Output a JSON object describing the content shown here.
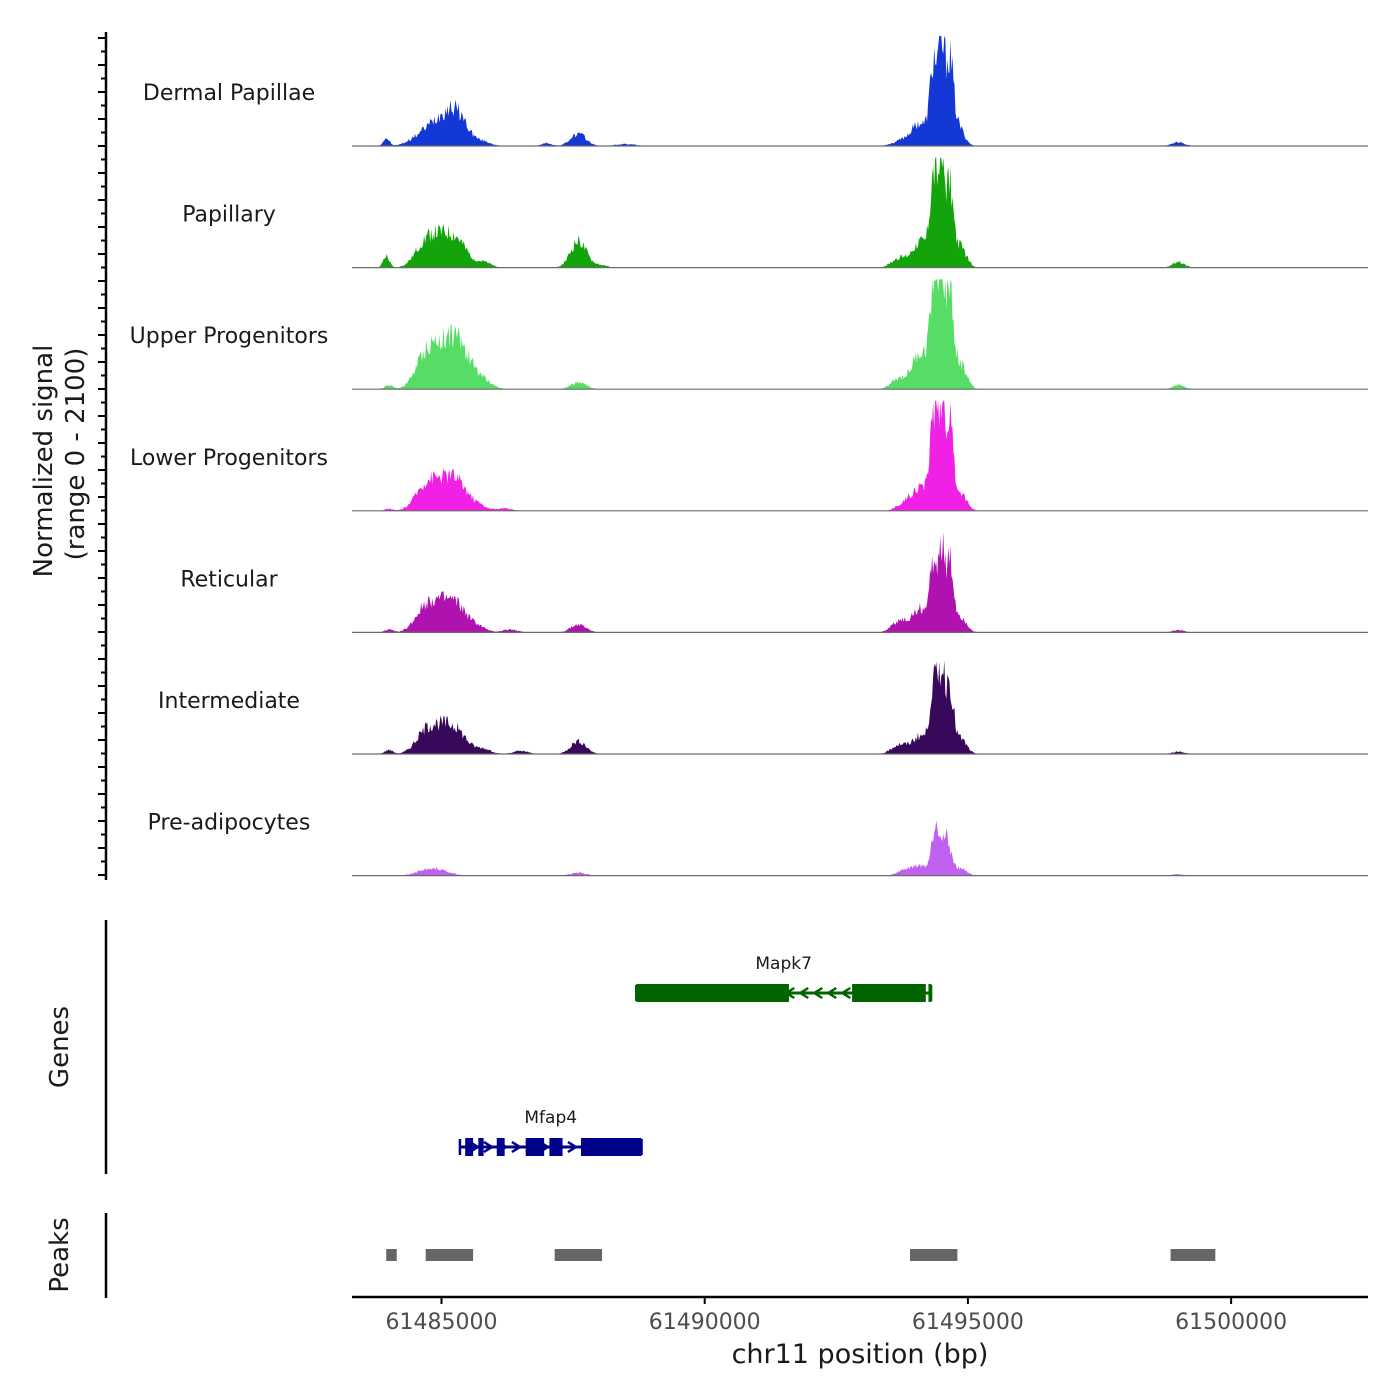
{
  "chart_data": {
    "type": "area",
    "title": "",
    "ylabel_line1": "Normalized signal",
    "ylabel_line2": "(range 0 - 2100)",
    "signal_range": [
      0,
      2100
    ],
    "xlabel": "chr11 position (bp)",
    "xlim": [
      61483300,
      61502600
    ],
    "x_ticks": [
      61485000,
      61490000,
      61495000,
      61500000
    ],
    "x_tick_labels": [
      "61485000",
      "61490000",
      "61495000",
      "61500000"
    ],
    "track_labels": {
      "genes": "Genes",
      "peaks": "Peaks"
    },
    "series": [
      {
        "name": "Dermal Papillae",
        "color": "#1338d6",
        "peaks": [
          [
            61483950,
            150,
            60
          ],
          [
            61484700,
            250,
            250
          ],
          [
            61485000,
            320,
            200
          ],
          [
            61485300,
            580,
            200
          ],
          [
            61485800,
            80,
            150
          ],
          [
            61487000,
            60,
            100
          ],
          [
            61487600,
            230,
            150
          ],
          [
            61488500,
            40,
            200
          ],
          [
            61493800,
            120,
            200
          ],
          [
            61494100,
            400,
            150
          ],
          [
            61494350,
            1500,
            70
          ],
          [
            61494500,
            1650,
            60
          ],
          [
            61494650,
            1500,
            70
          ],
          [
            61494800,
            400,
            120
          ],
          [
            61499000,
            80,
            120
          ]
        ]
      },
      {
        "name": "Papillary",
        "color": "#13a30a",
        "peaks": [
          [
            61483950,
            220,
            60
          ],
          [
            61484700,
            450,
            200
          ],
          [
            61485000,
            380,
            200
          ],
          [
            61485300,
            450,
            200
          ],
          [
            61485800,
            100,
            150
          ],
          [
            61487600,
            500,
            150
          ],
          [
            61488000,
            50,
            150
          ],
          [
            61493700,
            180,
            150
          ],
          [
            61494100,
            500,
            150
          ],
          [
            61494350,
            1650,
            70
          ],
          [
            61494500,
            1750,
            60
          ],
          [
            61494650,
            1500,
            70
          ],
          [
            61494850,
            400,
            120
          ],
          [
            61499000,
            100,
            120
          ]
        ]
      },
      {
        "name": "Upper Progenitors",
        "color": "#55dd66",
        "peaks": [
          [
            61484000,
            80,
            80
          ],
          [
            61484700,
            600,
            200
          ],
          [
            61485000,
            500,
            200
          ],
          [
            61485300,
            800,
            200
          ],
          [
            61485700,
            250,
            200
          ],
          [
            61487600,
            130,
            150
          ],
          [
            61493700,
            200,
            150
          ],
          [
            61494100,
            700,
            150
          ],
          [
            61494350,
            2000,
            70
          ],
          [
            61494500,
            2100,
            60
          ],
          [
            61494650,
            1800,
            70
          ],
          [
            61494850,
            500,
            120
          ],
          [
            61499000,
            80,
            120
          ]
        ]
      },
      {
        "name": "Lower Progenitors",
        "color": "#f020e6",
        "peaks": [
          [
            61484000,
            40,
            80
          ],
          [
            61484700,
            450,
            200
          ],
          [
            61485000,
            350,
            200
          ],
          [
            61485300,
            500,
            200
          ],
          [
            61485700,
            100,
            150
          ],
          [
            61486200,
            50,
            150
          ],
          [
            61493800,
            150,
            150
          ],
          [
            61494100,
            450,
            150
          ],
          [
            61494350,
            1800,
            70
          ],
          [
            61494500,
            1900,
            60
          ],
          [
            61494650,
            1650,
            70
          ],
          [
            61494850,
            350,
            120
          ]
        ]
      },
      {
        "name": "Reticular",
        "color": "#b012b0",
        "peaks": [
          [
            61484000,
            60,
            80
          ],
          [
            61484700,
            450,
            200
          ],
          [
            61485000,
            350,
            200
          ],
          [
            61485300,
            450,
            200
          ],
          [
            61485700,
            100,
            150
          ],
          [
            61486300,
            60,
            150
          ],
          [
            61487600,
            150,
            150
          ],
          [
            61493700,
            220,
            150
          ],
          [
            61494100,
            450,
            150
          ],
          [
            61494350,
            1250,
            70
          ],
          [
            61494500,
            1400,
            60
          ],
          [
            61494650,
            1250,
            70
          ],
          [
            61494850,
            300,
            120
          ],
          [
            61499000,
            50,
            120
          ]
        ]
      },
      {
        "name": "Intermediate",
        "color": "#38095a",
        "peaks": [
          [
            61484000,
            80,
            80
          ],
          [
            61484700,
            380,
            200
          ],
          [
            61485000,
            350,
            200
          ],
          [
            61485300,
            380,
            200
          ],
          [
            61485800,
            100,
            150
          ],
          [
            61486500,
            60,
            150
          ],
          [
            61487600,
            250,
            150
          ],
          [
            61493700,
            180,
            150
          ],
          [
            61494100,
            350,
            150
          ],
          [
            61494350,
            1300,
            70
          ],
          [
            61494500,
            1450,
            60
          ],
          [
            61494650,
            1300,
            70
          ],
          [
            61494850,
            300,
            120
          ],
          [
            61499000,
            50,
            120
          ]
        ]
      },
      {
        "name": "Pre-adipocytes",
        "color": "#c060f0",
        "peaks": [
          [
            61484700,
            100,
            200
          ],
          [
            61485000,
            80,
            200
          ],
          [
            61487600,
            60,
            150
          ],
          [
            61493800,
            100,
            150
          ],
          [
            61494100,
            180,
            150
          ],
          [
            61494400,
            1000,
            80
          ],
          [
            61494600,
            650,
            80
          ],
          [
            61494850,
            150,
            120
          ],
          [
            61499000,
            30,
            120
          ]
        ]
      }
    ],
    "genes": [
      {
        "name": "Mapk7",
        "color": "#006400",
        "strand": "-",
        "row": 0,
        "start": 61488700,
        "end": 61494300,
        "exons": [
          [
            61488700,
            61491600
          ],
          [
            61492800,
            61494200
          ],
          [
            61494250,
            61494300
          ]
        ]
      },
      {
        "name": "Mfap4",
        "color": "#00008b",
        "strand": "+",
        "row": 1,
        "start": 61485350,
        "end": 61488800,
        "exons": [
          [
            61485450,
            61485600
          ],
          [
            61485700,
            61485800
          ],
          [
            61486050,
            61486200
          ],
          [
            61486600,
            61486950
          ],
          [
            61487050,
            61487300
          ],
          [
            61487650,
            61488800
          ]
        ]
      }
    ],
    "peaks": [
      [
        61483950,
        61484150
      ],
      [
        61484700,
        61485600
      ],
      [
        61487150,
        61488050
      ],
      [
        61493900,
        61494800
      ],
      [
        61498850,
        61499700
      ]
    ]
  }
}
